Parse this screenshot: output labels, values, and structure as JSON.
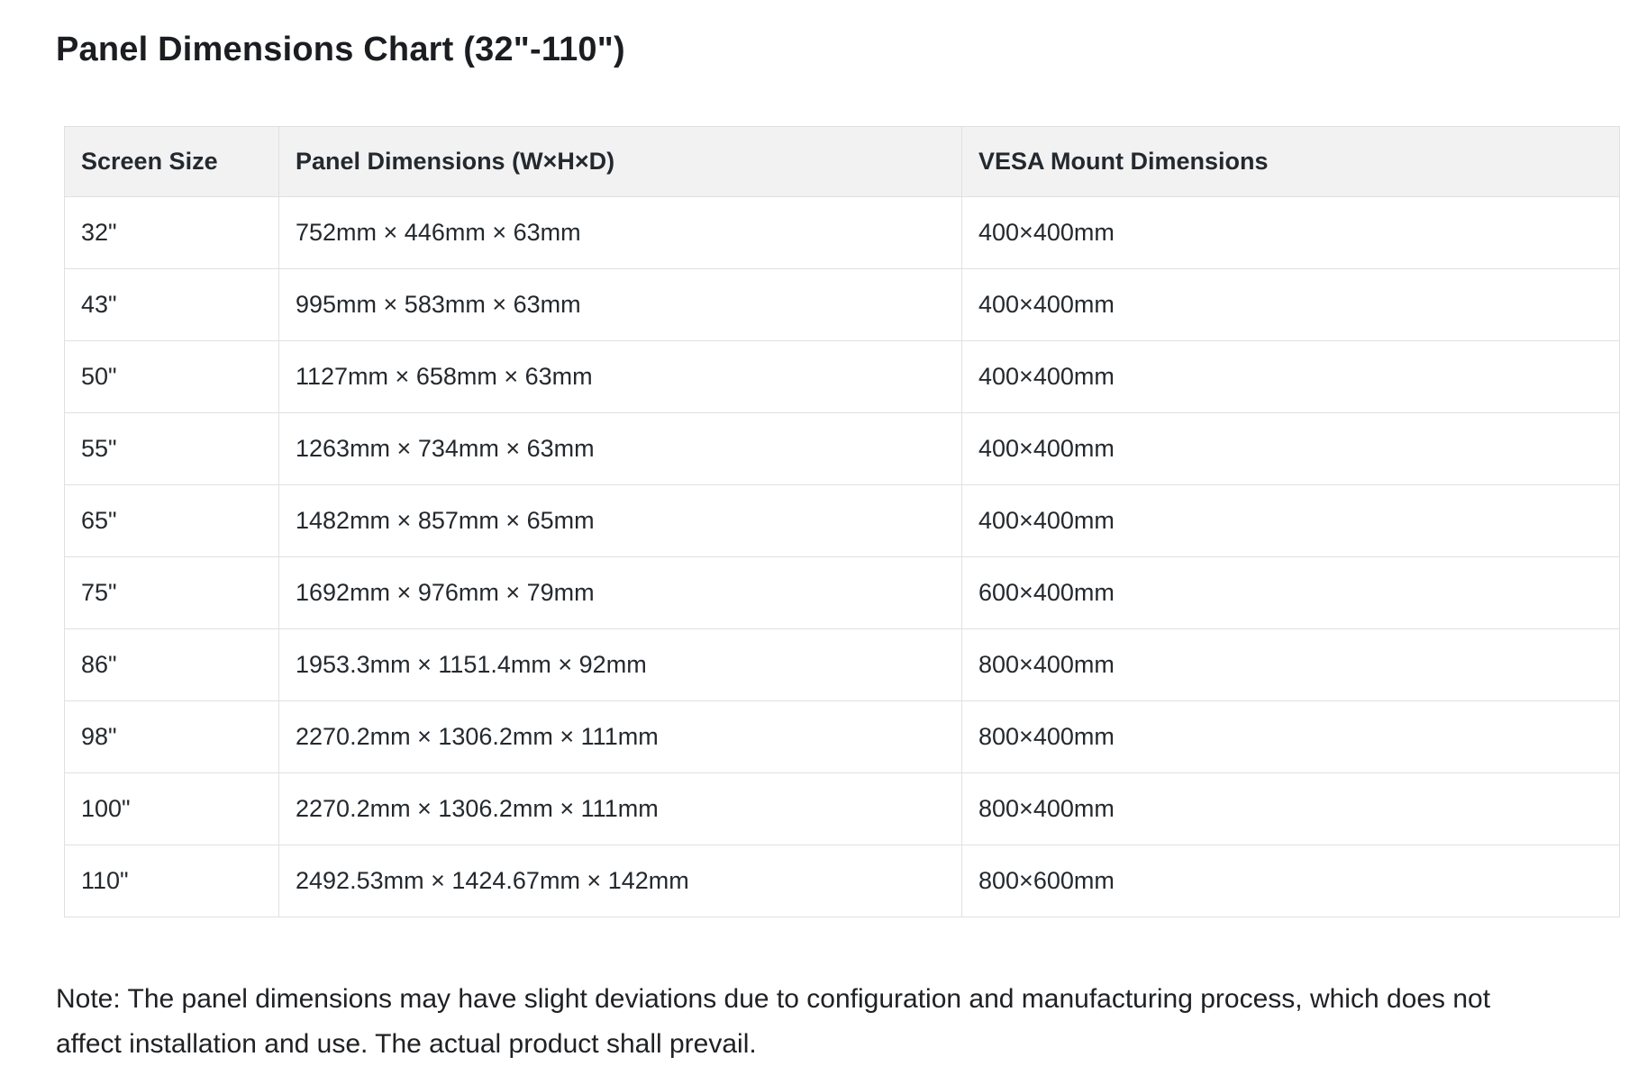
{
  "page": {
    "title": "Panel Dimensions Chart (32\"-110\")",
    "note": "Note: The panel dimensions may have slight deviations due to configuration and manufacturing process, which does not affect installation and use. The actual product shall prevail."
  },
  "table": {
    "columns": [
      "Screen Size",
      "Panel Dimensions (W×H×D)",
      "VESA Mount Dimensions"
    ],
    "rows": [
      {
        "screen_size": "32\"",
        "panel_dimensions": "752mm × 446mm × 63mm",
        "vesa_mount": "400×400mm"
      },
      {
        "screen_size": "43\"",
        "panel_dimensions": "995mm × 583mm × 63mm",
        "vesa_mount": "400×400mm"
      },
      {
        "screen_size": "50\"",
        "panel_dimensions": "1127mm × 658mm × 63mm",
        "vesa_mount": "400×400mm"
      },
      {
        "screen_size": "55\"",
        "panel_dimensions": "1263mm × 734mm × 63mm",
        "vesa_mount": "400×400mm"
      },
      {
        "screen_size": "65\"",
        "panel_dimensions": "1482mm × 857mm × 65mm",
        "vesa_mount": "400×400mm"
      },
      {
        "screen_size": "75\"",
        "panel_dimensions": "1692mm × 976mm × 79mm",
        "vesa_mount": "600×400mm"
      },
      {
        "screen_size": "86\"",
        "panel_dimensions": "1953.3mm × 1151.4mm × 92mm",
        "vesa_mount": "800×400mm"
      },
      {
        "screen_size": "98\"",
        "panel_dimensions": "2270.2mm × 1306.2mm × 111mm",
        "vesa_mount": "800×400mm"
      },
      {
        "screen_size": "100\"",
        "panel_dimensions": "2270.2mm × 1306.2mm × 111mm",
        "vesa_mount": "800×400mm"
      },
      {
        "screen_size": "110\"",
        "panel_dimensions": "2492.53mm × 1424.67mm × 142mm",
        "vesa_mount": "800×600mm"
      }
    ]
  },
  "colors": {
    "header_bg": "#f2f2f3",
    "border": "#e0e0e0",
    "text": "#202124",
    "title": "#1b1d21"
  }
}
